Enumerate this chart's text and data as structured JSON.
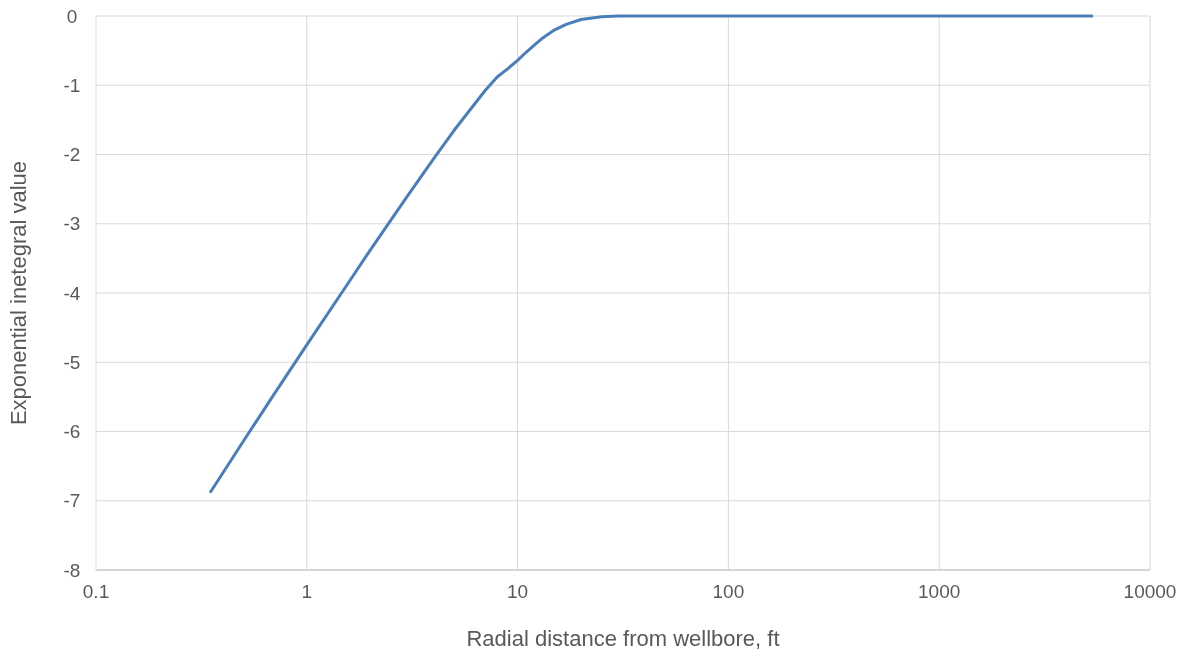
{
  "chart_data": {
    "type": "line",
    "xlabel": "Radial distance from wellbore, ft",
    "ylabel": "Exponential inetegral value",
    "x": [
      0.35,
      0.5,
      0.7,
      1,
      1.5,
      2,
      3,
      4,
      5,
      7,
      8,
      9,
      10,
      11,
      12,
      13,
      15,
      17,
      20,
      25,
      30,
      100,
      1000,
      5300
    ],
    "series": [
      {
        "color": "#4a7ebb",
        "values": [
          -6.87,
          -6.14,
          -5.46,
          -4.75,
          -3.95,
          -3.38,
          -2.6,
          -2.06,
          -1.65,
          -1.08,
          -0.88,
          -0.76,
          -0.64,
          -0.52,
          -0.42,
          -0.33,
          -0.2,
          -0.12,
          -0.05,
          -0.01,
          0,
          0,
          0,
          0
        ]
      }
    ],
    "xlim": [
      0.1,
      10000
    ],
    "xticks": [
      0.1,
      1,
      10,
      100,
      1000,
      10000
    ],
    "ylim": [
      -8,
      0
    ],
    "yticks": [
      -8,
      -7,
      -6,
      -5,
      -4,
      -3,
      -2,
      -1,
      0
    ],
    "log": "x",
    "grid": true,
    "marker": "none",
    "line_style": "solid"
  }
}
